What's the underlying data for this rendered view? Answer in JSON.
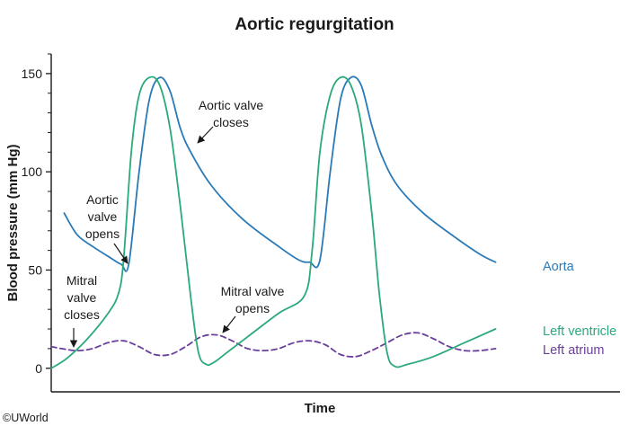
{
  "chart_data": {
    "type": "line",
    "title": "Aortic regurgitation",
    "xlabel": "Time",
    "ylabel": "Blood pressure (mm Hg)",
    "ylim": [
      -12,
      160
    ],
    "xlim": [
      0,
      100
    ],
    "yticks": [
      0,
      50,
      100,
      150
    ],
    "grid": false,
    "series": [
      {
        "name": "Aorta",
        "color": "#2a7ab8",
        "dash": false,
        "x": [
          2.5,
          5,
          8,
          11,
          13.5,
          15,
          17,
          19,
          21,
          23,
          25,
          27,
          31,
          37,
          44,
          48,
          50,
          52,
          54,
          56,
          58,
          60,
          62,
          64,
          67,
          72,
          78,
          83,
          86
        ],
        "y": [
          79,
          68,
          62,
          57,
          53,
          53,
          100,
          137,
          148,
          141,
          122,
          110,
          93,
          76,
          62,
          55,
          54,
          55,
          100,
          137,
          148,
          144,
          124,
          108,
          93,
          79,
          67,
          58,
          54
        ]
      },
      {
        "name": "Left ventricle",
        "color": "#2aaa7a",
        "dash": false,
        "x": [
          0,
          3,
          7,
          11,
          13,
          14,
          15.5,
          17,
          19,
          21,
          23,
          25,
          27,
          28.5,
          30,
          31.5,
          34,
          38,
          44,
          49,
          50.5,
          52,
          54,
          56,
          58,
          60,
          62,
          63.5,
          65,
          66.5,
          69,
          74,
          80,
          86
        ],
        "y": [
          0,
          5,
          15,
          28,
          38,
          55,
          110,
          139,
          148,
          144,
          122,
          82,
          36,
          8,
          2,
          3,
          8,
          16,
          28,
          37,
          60,
          110,
          139,
          148,
          144,
          124,
          80,
          38,
          8,
          1,
          2,
          6,
          13,
          20
        ]
      },
      {
        "name": "Left atrium",
        "color": "#6a3f9c",
        "dash": true,
        "x": [
          0,
          2,
          5,
          8,
          11,
          14,
          17,
          20,
          23,
          26,
          29,
          32,
          35,
          38,
          41,
          44,
          47,
          50,
          53,
          56,
          59,
          62,
          65,
          68,
          71,
          74,
          77,
          80,
          83,
          86
        ],
        "y": [
          11,
          10,
          9,
          10,
          13,
          14,
          11,
          7,
          7,
          11,
          16,
          17,
          14,
          10,
          9,
          10,
          13,
          14,
          12,
          7,
          6,
          9,
          13,
          17,
          18,
          15,
          11,
          9,
          9,
          10
        ]
      }
    ],
    "annotations": [
      {
        "lines": [
          "Aortic valve",
          "closes"
        ],
        "x": 27,
        "y": 115
      },
      {
        "lines": [
          "Aortic",
          "valve",
          "opens"
        ],
        "x": 14,
        "y": 52
      },
      {
        "lines": [
          "Mitral",
          "valve",
          "closes"
        ],
        "x": 4,
        "y": 9
      },
      {
        "lines": [
          "Mitral valve",
          "opens"
        ],
        "x": 28.5,
        "y": 17
      }
    ],
    "legend_placement": "right-of-lines"
  },
  "credit": "©UWorld"
}
